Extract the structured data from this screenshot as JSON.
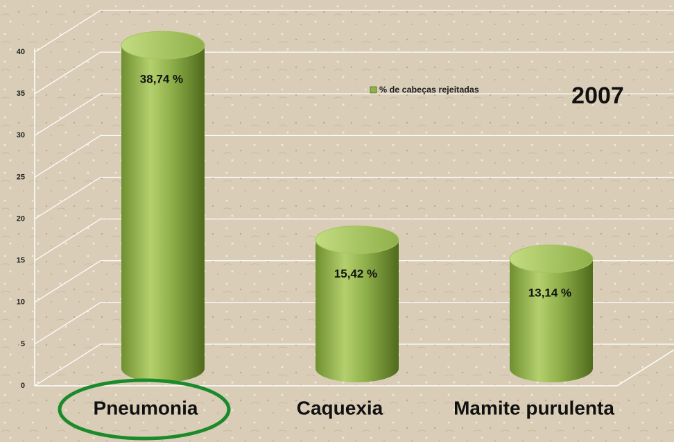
{
  "chart_data": {
    "type": "bar3d",
    "categories": [
      "Pneumonia",
      "Caquexia",
      "Mamite purulenta"
    ],
    "series": [
      {
        "name": "% de cabeças rejeitadas",
        "color": "#8fb04a",
        "values": [
          38.74,
          15.42,
          13.14
        ],
        "value_labels": [
          "38,74 %",
          "15,42 %",
          "13,14 %"
        ]
      }
    ],
    "annotation": "2007",
    "ylim": [
      0,
      40
    ],
    "yticks": [
      0,
      5,
      10,
      15,
      20,
      25,
      30,
      35,
      40
    ],
    "grid": true,
    "legend": "top"
  }
}
